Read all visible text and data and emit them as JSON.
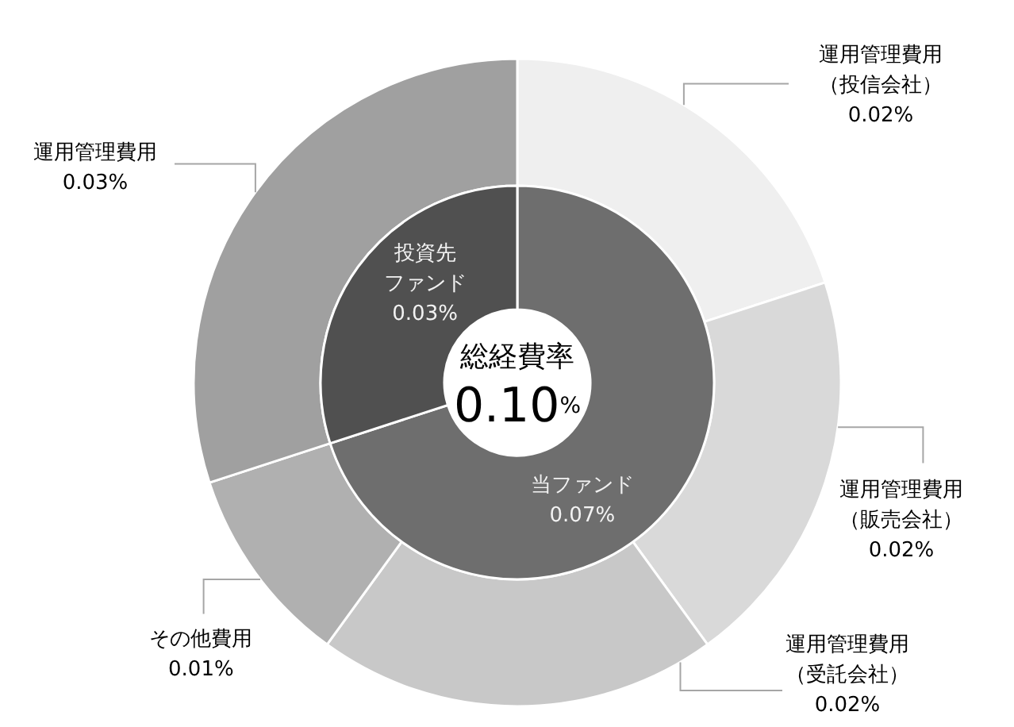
{
  "chart_data": [
    {
      "type": "donut",
      "title": "総経費率",
      "subtitle": "0.10%",
      "categories": [
        "当ファンド",
        "投資先ファンド"
      ],
      "values": [
        0.07,
        0.03
      ],
      "colors": [
        "#6e6e6e",
        "#505050"
      ],
      "value_labels": [
        "0.07%",
        "0.03%"
      ]
    },
    {
      "type": "donut",
      "categories": [
        "運用管理費用（投信会社）",
        "運用管理費用（販売会社）",
        "運用管理費用（受託会社）",
        "その他費用",
        "運用管理費用"
      ],
      "values": [
        0.02,
        0.02,
        0.02,
        0.01,
        0.03
      ],
      "colors": [
        "#efefef",
        "#d9d9d9",
        "#c8c8c8",
        "#b0b0b0",
        "#a0a0a0"
      ],
      "value_labels": [
        "0.02%",
        "0.02%",
        "0.02%",
        "0.01%",
        "0.03%"
      ]
    }
  ]
}
